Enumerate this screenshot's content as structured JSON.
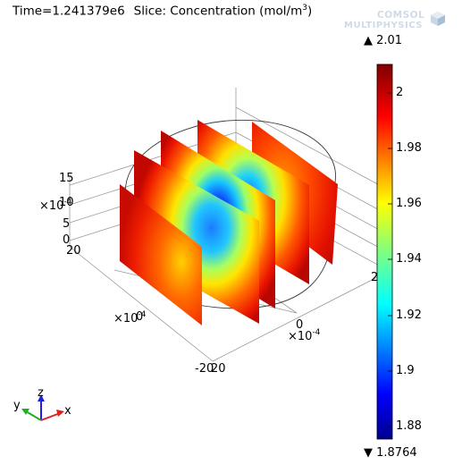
{
  "header": {
    "time_text": "Time=1.241379e6",
    "slice_prefix": "Slice: Concentration (mol/m",
    "slice_sup": "3",
    "slice_suffix": ")"
  },
  "logo": {
    "line1": "COMSOL",
    "line2": "MULTIPHYSICS"
  },
  "colorbar": {
    "max_label": "▲ 2.01",
    "min_label": "▼ 1.8764",
    "ticks": [
      "2",
      "1.98",
      "1.96",
      "1.94",
      "1.92",
      "1.9",
      "1.88"
    ],
    "max_value": 2.01,
    "min_value": 1.8764
  },
  "axes": {
    "z_ticks": [
      "15",
      "10",
      "5",
      "0"
    ],
    "z_multiplier": "×10",
    "z_exp": "-4",
    "y_ticks": [
      "20",
      "0",
      "-20"
    ],
    "y_multiplier": "×10",
    "y_exp": "-4",
    "x_ticks": [
      "2",
      "0",
      "20"
    ],
    "x_multiplier": "×10",
    "x_exp": "-4"
  },
  "triad": {
    "x_label": "x",
    "y_label": "y",
    "z_label": "z",
    "x_color": "#e02020",
    "y_color": "#20b020",
    "z_color": "#2020e0"
  }
}
